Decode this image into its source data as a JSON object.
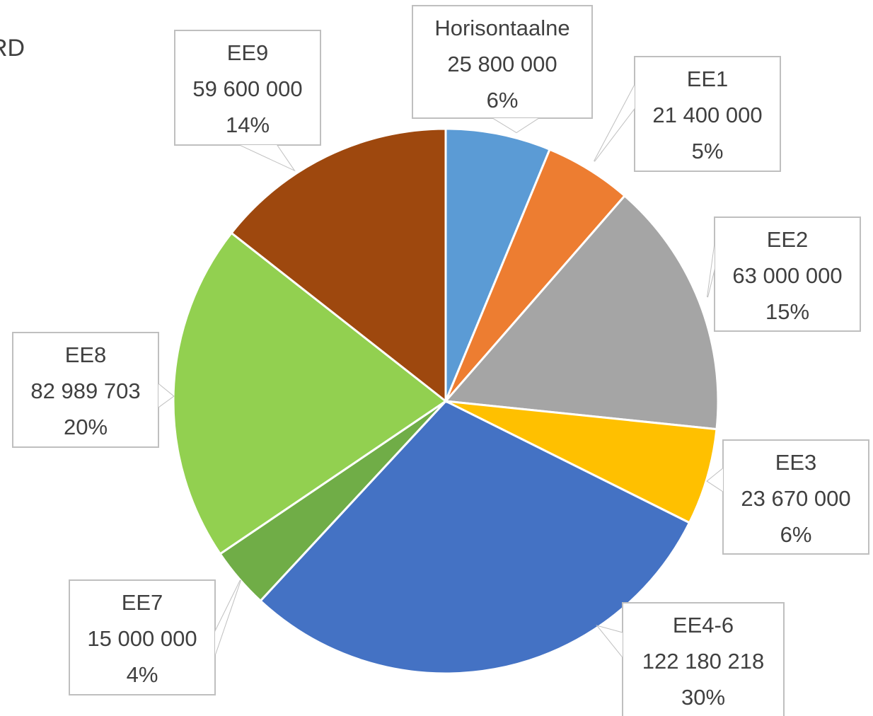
{
  "chart_data": {
    "type": "pie",
    "title": "RD",
    "categories": [
      "Horisontaalne",
      "EE1",
      "EE2",
      "EE3",
      "EE4-6",
      "EE7",
      "EE8",
      "EE9"
    ],
    "values": [
      25800000,
      21400000,
      63000000,
      23670000,
      122180218,
      15000000,
      82989703,
      59600000
    ],
    "value_labels": [
      "25 800 000",
      "21 400 000",
      "63 000 000",
      "23 670 000",
      "122 180 218",
      "15 000 000",
      "82 989 703",
      "59 600 000"
    ],
    "percent_labels": [
      "6%",
      "5%",
      "15%",
      "6%",
      "30%",
      "4%",
      "20%",
      "14%"
    ],
    "colors": [
      "#5b9bd5",
      "#ed7d31",
      "#a5a5a5",
      "#ffc000",
      "#4472c4",
      "#70ad47",
      "#92d050",
      "#9e480e"
    ]
  }
}
